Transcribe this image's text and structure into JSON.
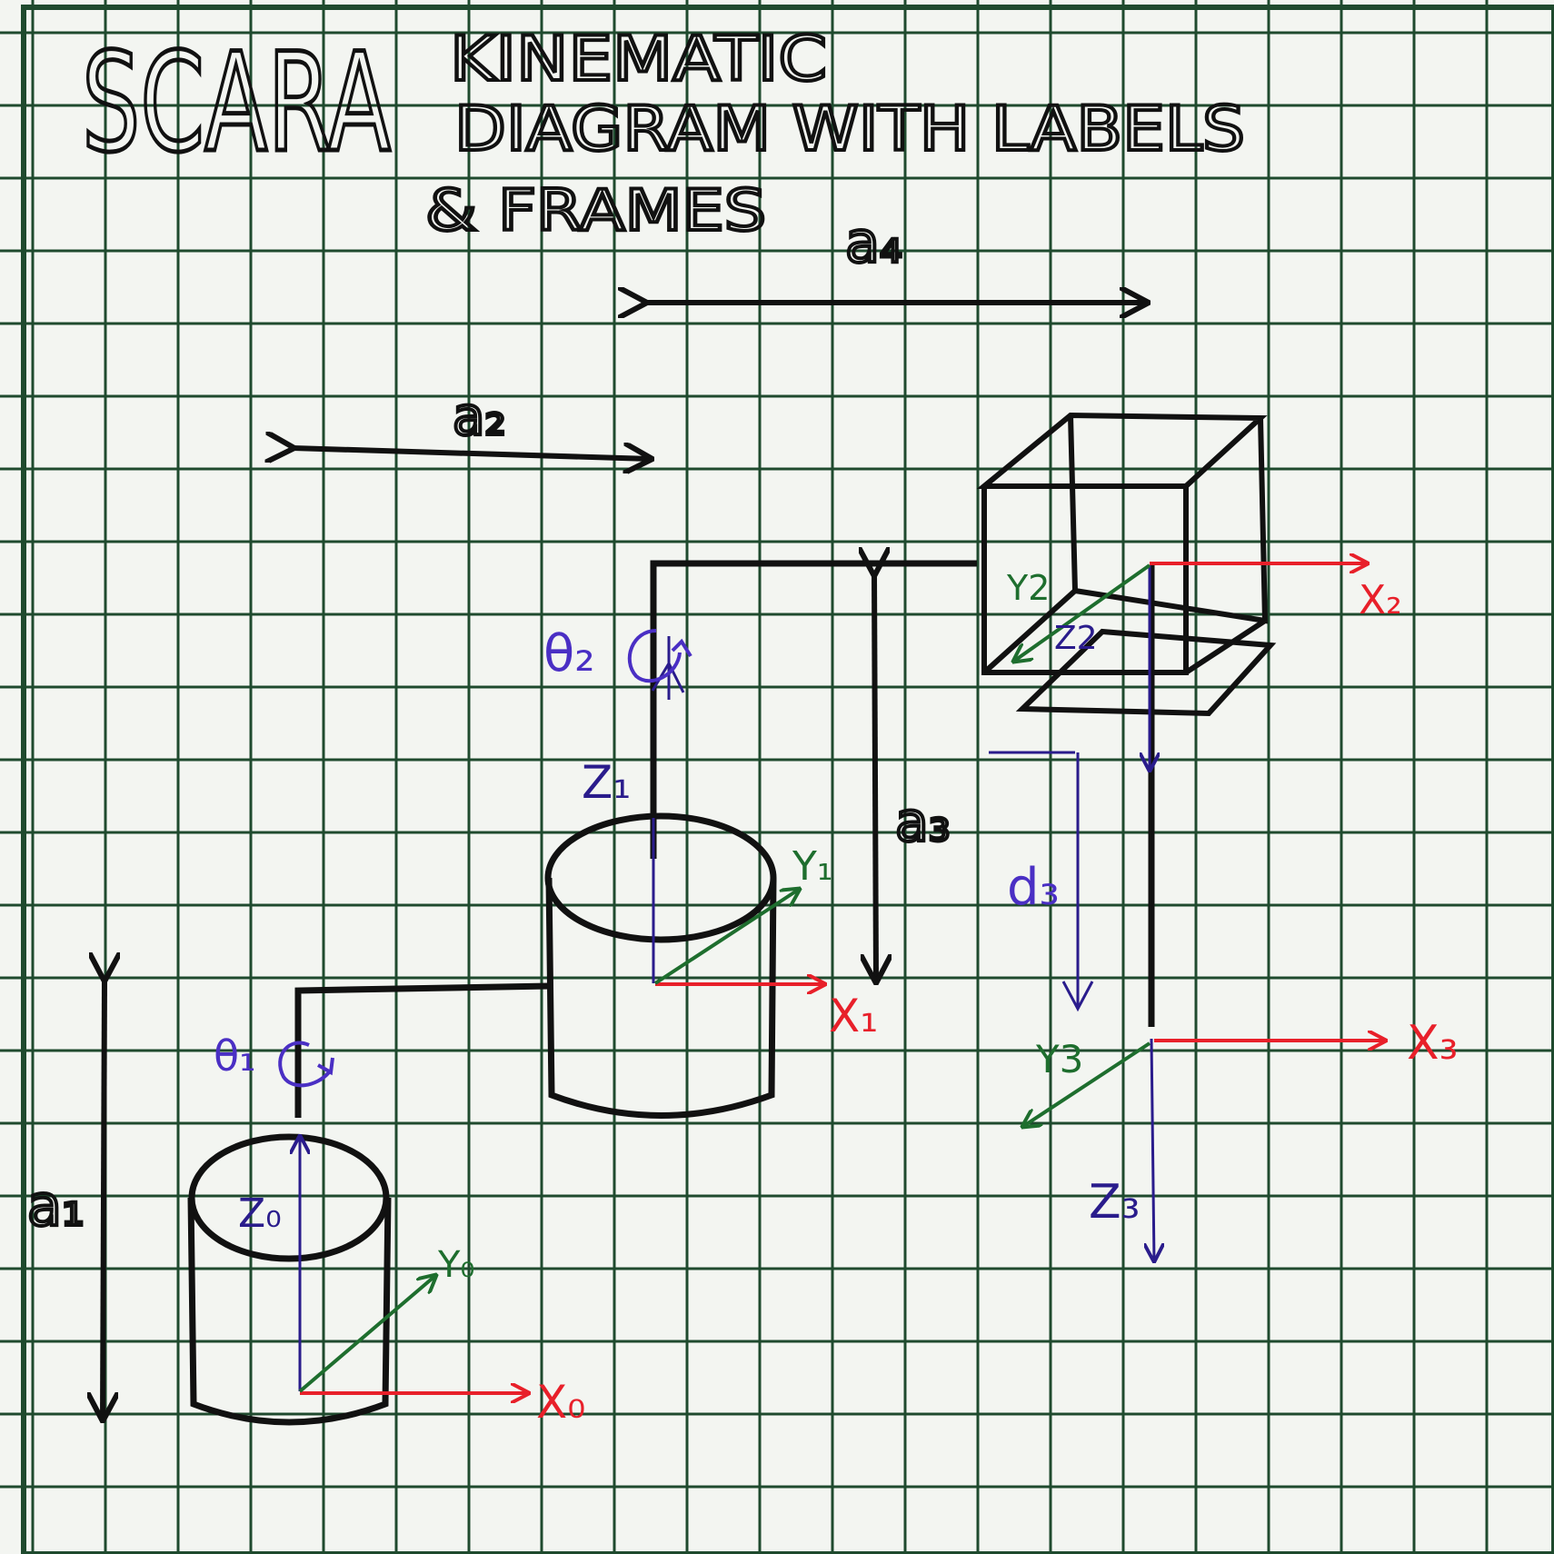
{
  "title": {
    "main": "SCARA",
    "line1": "KINEMATIC",
    "line2": "DIAGRAM WITH LABELS",
    "line3": "& FRAMES"
  },
  "dimensions": {
    "a1": "a₁",
    "a2": "a₂",
    "a3": "a₃",
    "a4": "a₄",
    "d3": "d₃"
  },
  "joints": {
    "theta1": "θ₁",
    "theta2": "θ₂"
  },
  "frames": {
    "x0": "X₀",
    "y0": "Y₀",
    "z0": "Z₀",
    "x1": "X₁",
    "y1": "Y₁",
    "z1": "Z₁",
    "x2": "X₂",
    "y2": "Y2",
    "z2": "Z2",
    "x3": "X₃",
    "y3": "Y3",
    "z3": "Z₃"
  },
  "colors": {
    "paper": "#f3f5f1",
    "grid": "#1f4a2e",
    "ink": "#111111",
    "x_axis": "#e8202a",
    "y_axis": "#1e6e2e",
    "z_axis": "#2a1c8c",
    "joint_label": "#4a2fc4"
  }
}
